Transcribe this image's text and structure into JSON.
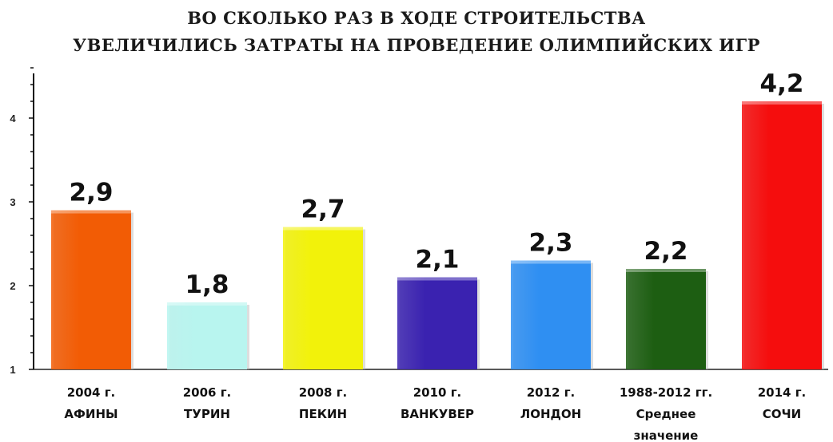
{
  "chart_data": {
    "type": "bar",
    "title_lines": [
      "ВО СКОЛЬКО РАЗ В ХОДЕ СТРОИТЕЛЬСТВА",
      "УВЕЛИЧИЛИСЬ ЗАТРАТЫ НА ПРОВЕДЕНИЕ ОЛИМПИЙСКИХ ИГР"
    ],
    "categories": [
      [
        "2004 г.",
        "АФИНЫ"
      ],
      [
        "2006 г.",
        "ТУРИН"
      ],
      [
        "2008 г.",
        "ПЕКИН"
      ],
      [
        "2010 г.",
        "ВАНКУВЕР"
      ],
      [
        "2012 г.",
        "ЛОНДОН"
      ],
      [
        "1988-2012 гг.",
        "Среднее",
        "значение"
      ],
      [
        "2014 г.",
        "СОЧИ"
      ]
    ],
    "values": [
      2.9,
      1.8,
      2.7,
      2.1,
      2.3,
      2.2,
      4.2
    ],
    "value_labels": [
      "2,9",
      "1,8",
      "2,7",
      "2,1",
      "2,3",
      "2,2",
      "4,2"
    ],
    "colors": [
      "#f25c05",
      "#b8f5ef",
      "#f2f20a",
      "#3a22b0",
      "#2f8ff2",
      "#1d5e12",
      "#f50d0d"
    ],
    "ylim": [
      1,
      4.6
    ],
    "yticks": [
      "1",
      "2",
      "3",
      "4"
    ],
    "ytick_values": [
      1,
      2,
      3,
      4
    ],
    "grid": false,
    "xlabel": "",
    "ylabel": ""
  }
}
